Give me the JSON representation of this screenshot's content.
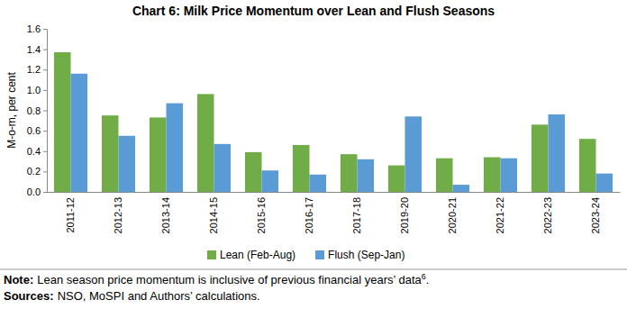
{
  "chart_data": {
    "type": "bar",
    "title": "Chart 6: Milk Price Momentum over Lean and Flush Seasons",
    "y_label": "M-o-m, per cent",
    "categories": [
      "2011-12",
      "2012-13",
      "2013-14",
      "2014-15",
      "2015-16",
      "2016-17",
      "2017-18",
      "2019-20",
      "2020-21",
      "2021-22",
      "2022-23",
      "2023-24"
    ],
    "series": [
      {
        "name": "Lean (Feb-Aug)",
        "color": "#70ad47",
        "values": [
          1.37,
          0.75,
          0.73,
          0.96,
          0.39,
          0.46,
          0.37,
          0.26,
          0.33,
          0.34,
          0.66,
          0.52
        ]
      },
      {
        "name": "Flush (Sep-Jan)",
        "color": "#5b9bd5",
        "values": [
          1.16,
          0.55,
          0.87,
          0.47,
          0.21,
          0.17,
          0.32,
          0.74,
          0.07,
          0.33,
          0.76,
          0.18
        ]
      }
    ],
    "ylim": [
      0,
      1.6
    ],
    "yticks": [
      {
        "value": 0,
        "label": "0.0"
      },
      0.2,
      0.4,
      0.6,
      0.8,
      {
        "value": 1,
        "label": "1.0"
      },
      1.2,
      1.4,
      1.6
    ],
    "grid": false,
    "legend": "bottom",
    "annotations": [
      {
        "label": "Note:",
        "text": "Lean season price momentum is inclusive of previous financial years’ data",
        "superscript": "6",
        "suffix": "."
      },
      {
        "label": "Sources:",
        "text": "NSO, MoSPI and Authors’ calculations."
      }
    ]
  }
}
